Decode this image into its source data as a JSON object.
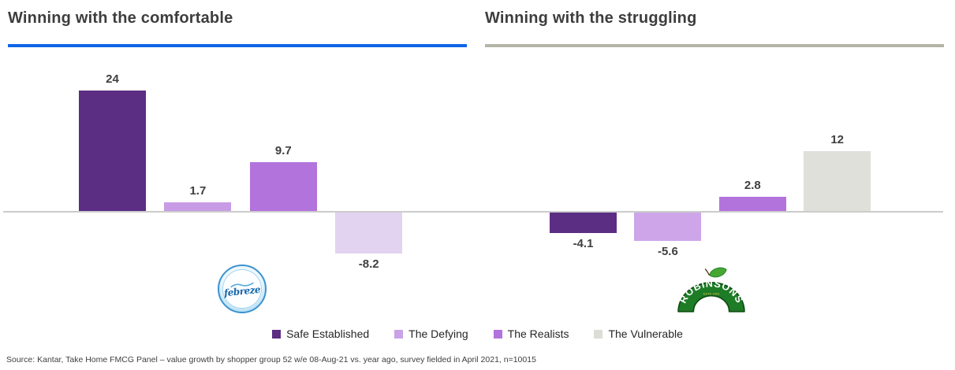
{
  "header": {
    "left": {
      "title": "Winning with the comfortable",
      "underline_color": "#0e65e8"
    },
    "right": {
      "title": "Winning with the struggling",
      "underline_color": "#b4b4a7"
    }
  },
  "chart_data": [
    {
      "type": "bar",
      "title": "Winning with the comfortable",
      "brand": "Febreze",
      "categories": [
        "Safe Established",
        "The Defying",
        "The Realists",
        "The Vulnerable"
      ],
      "values": [
        24,
        1.7,
        9.7,
        -8.2
      ],
      "value_labels": [
        "24",
        "1.7",
        "9.7",
        "-8.2"
      ],
      "bar_colors": [
        "#5b2d83",
        "#c89ce5",
        "#b273dc",
        "#e2d3f1"
      ],
      "ylim": [
        -10,
        26
      ],
      "grid": false,
      "legend_position": "bottom-center"
    },
    {
      "type": "bar",
      "title": "Winning with the struggling",
      "brand": "Robinsons",
      "categories": [
        "Safe Established",
        "The Defying",
        "The Realists",
        "The Vulnerable"
      ],
      "values": [
        -4.1,
        -5.6,
        2.8,
        12
      ],
      "value_labels": [
        "-4.1",
        "-5.6",
        "2.8",
        "12"
      ],
      "bar_colors": [
        "#5b2d83",
        "#cda5e8",
        "#b273dc",
        "#dfe0da"
      ],
      "ylim": [
        -10,
        26
      ],
      "grid": false,
      "legend_position": "bottom-center"
    }
  ],
  "legend": {
    "items": [
      {
        "label": "Safe Established",
        "color": "#5b2d83"
      },
      {
        "label": "The Defying",
        "color": "#c9a3e6"
      },
      {
        "label": "The Realists",
        "color": "#b273dc"
      },
      {
        "label": "The Vulnerable",
        "color": "#dcddd7"
      }
    ]
  },
  "logos": {
    "febreze": {
      "text": "febreze",
      "text_color": "#1668ab",
      "ring_color": "#3c93cf"
    },
    "robinsons": {
      "text": "ROBINSONS",
      "subtext": "ESTD 1823",
      "band_color": "#1e7c26",
      "border_color": "#0e4f14",
      "accent_color": "#e9c64d"
    }
  },
  "footer": {
    "source_note": "Source: Kantar, Take Home FMCG Panel – value growth by shopper group 52 w/e 08-Aug-21 vs. year ago, survey fielded in April 2021, n=10015"
  }
}
